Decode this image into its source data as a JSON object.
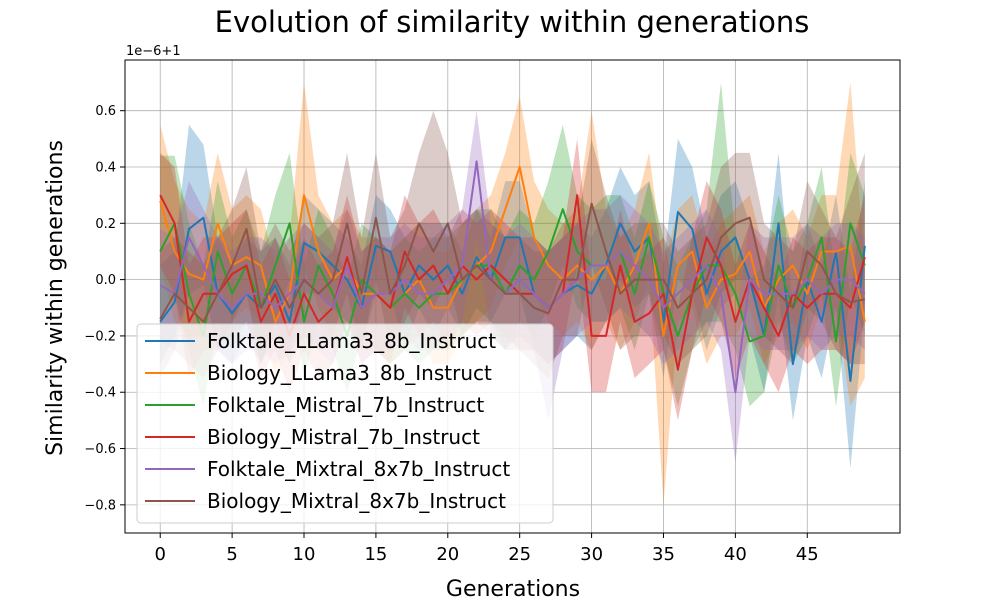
{
  "chart_data": {
    "type": "line",
    "title": "Evolution of similarity within generations",
    "xlabel": "Generations",
    "ylabel": "Similarity within generations",
    "offset_label": "1e−6+1",
    "xlim": [
      -2.45,
      51.45
    ],
    "ylim": [
      -0.9,
      0.78
    ],
    "x_ticks": [
      0,
      5,
      10,
      15,
      20,
      25,
      30,
      35,
      40,
      45
    ],
    "y_ticks": [
      -0.8,
      -0.6,
      -0.4,
      -0.2,
      0.0,
      0.2,
      0.4,
      0.6
    ],
    "y_tick_labels": [
      "−0.8",
      "−0.6",
      "−0.4",
      "−0.2",
      "0.0",
      "0.2",
      "0.4",
      "0.6"
    ],
    "grid": true,
    "legend_position": "lower-left",
    "x": [
      0,
      1,
      2,
      3,
      4,
      5,
      6,
      7,
      8,
      9,
      10,
      11,
      12,
      13,
      14,
      15,
      16,
      17,
      18,
      19,
      20,
      21,
      22,
      23,
      24,
      25,
      26,
      27,
      28,
      29,
      30,
      31,
      32,
      33,
      34,
      35,
      36,
      37,
      38,
      39,
      40,
      41,
      42,
      43,
      44,
      45,
      46,
      47,
      48,
      49
    ],
    "series": [
      {
        "name": "Folktale_LLama3_8b_Instruct",
        "color": "#1f77b4",
        "values": [
          -0.15,
          -0.08,
          0.18,
          0.22,
          -0.05,
          -0.12,
          -0.05,
          -0.1,
          -0.02,
          -0.15,
          0.13,
          0.1,
          0.05,
          0.0,
          -0.1,
          0.12,
          0.1,
          -0.05,
          0.05,
          0.0,
          0.05,
          -0.05,
          0.08,
          0.0,
          0.15,
          0.15,
          -0.05,
          -0.1,
          -0.05,
          -0.02,
          -0.05,
          0.05,
          0.2,
          0.1,
          0.15,
          -0.15,
          0.24,
          0.18,
          -0.05,
          0.1,
          0.15,
          0.0,
          -0.2,
          0.2,
          -0.3,
          0.0,
          -0.15,
          0.1,
          -0.36,
          0.12
        ],
        "lower": [
          -0.3,
          -0.2,
          -0.05,
          -0.02,
          -0.25,
          -0.3,
          -0.2,
          -0.3,
          -0.15,
          -0.3,
          -0.05,
          -0.05,
          -0.1,
          -0.15,
          -0.25,
          -0.05,
          -0.05,
          -0.25,
          -0.1,
          -0.2,
          -0.1,
          -0.2,
          -0.1,
          -0.15,
          -0.05,
          -0.05,
          -0.25,
          -0.3,
          -0.25,
          -0.2,
          -0.25,
          -0.15,
          0.0,
          -0.1,
          -0.05,
          -0.35,
          0.0,
          -0.05,
          -0.25,
          -0.1,
          -0.05,
          -0.2,
          -0.4,
          -0.05,
          -0.5,
          -0.2,
          -0.35,
          -0.1,
          -0.67,
          -0.1
        ],
        "upper": [
          0.05,
          0.1,
          0.55,
          0.48,
          0.15,
          0.05,
          0.15,
          0.1,
          0.15,
          0.05,
          0.3,
          0.25,
          0.2,
          0.15,
          0.05,
          0.3,
          0.25,
          0.15,
          0.2,
          0.2,
          0.2,
          0.1,
          0.25,
          0.15,
          0.35,
          0.35,
          0.15,
          0.1,
          0.15,
          0.2,
          0.15,
          0.25,
          0.4,
          0.3,
          0.35,
          0.05,
          0.5,
          0.4,
          0.15,
          0.3,
          0.35,
          0.2,
          0.0,
          0.45,
          -0.1,
          0.2,
          0.05,
          0.3,
          -0.05,
          0.35
        ]
      },
      {
        "name": "Biology_LLama3_8b_Instruct",
        "color": "#ff7f0e",
        "values": [
          0.28,
          0.1,
          0.02,
          0.0,
          0.2,
          0.05,
          0.08,
          0.05,
          -0.15,
          -0.05,
          0.3,
          0.1,
          0.0,
          0.05,
          -0.05,
          -0.05,
          -0.1,
          -0.05,
          0.0,
          -0.1,
          -0.1,
          0.0,
          0.05,
          0.1,
          0.25,
          0.4,
          0.15,
          0.05,
          0.0,
          0.05,
          0.0,
          0.05,
          -0.05,
          0.05,
          0.2,
          -0.2,
          0.05,
          0.1,
          -0.1,
          0.0,
          0.02,
          0.1,
          -0.1,
          0.0,
          0.05,
          -0.05,
          0.1,
          0.1,
          0.12,
          -0.15
        ],
        "lower": [
          0.05,
          -0.15,
          -0.2,
          -0.2,
          0.0,
          -0.15,
          -0.1,
          -0.15,
          -0.35,
          -0.25,
          0.05,
          -0.1,
          -0.2,
          -0.15,
          -0.25,
          -0.25,
          -0.3,
          -0.25,
          -0.2,
          -0.3,
          -0.3,
          -0.2,
          -0.15,
          -0.1,
          0.05,
          0.15,
          -0.05,
          -0.15,
          -0.2,
          -0.15,
          -0.25,
          -0.15,
          -0.25,
          -0.15,
          0.0,
          -0.8,
          -0.15,
          -0.1,
          -0.3,
          -0.2,
          -0.2,
          -0.1,
          -0.3,
          -0.2,
          -0.15,
          -0.25,
          -0.1,
          -0.1,
          -0.45,
          -0.35
        ],
        "upper": [
          0.55,
          0.35,
          0.25,
          0.2,
          0.45,
          0.25,
          0.3,
          0.25,
          0.05,
          0.15,
          0.7,
          0.3,
          0.2,
          0.25,
          0.15,
          0.15,
          0.1,
          0.15,
          0.2,
          0.1,
          0.1,
          0.2,
          0.25,
          0.3,
          0.45,
          0.65,
          0.35,
          0.25,
          0.2,
          0.25,
          0.6,
          0.25,
          0.15,
          0.25,
          0.45,
          0.05,
          0.25,
          0.3,
          0.1,
          0.2,
          0.25,
          0.3,
          0.1,
          0.2,
          0.25,
          0.15,
          0.3,
          0.3,
          0.7,
          0.05
        ]
      },
      {
        "name": "Folktale_Mistral_7b_Instruct",
        "color": "#2ca02c",
        "values": [
          0.1,
          0.2,
          -0.05,
          -0.2,
          0.1,
          -0.05,
          0.05,
          -0.1,
          0.05,
          0.2,
          -0.15,
          0.05,
          -0.05,
          -0.2,
          0.0,
          -0.05,
          -0.1,
          -0.05,
          -0.1,
          -0.05,
          -0.05,
          0.0,
          0.05,
          0.05,
          -0.05,
          0.05,
          0.0,
          0.1,
          0.25,
          0.1,
          0.05,
          0.05,
          0.1,
          -0.05,
          0.15,
          -0.05,
          -0.2,
          -0.05,
          0.05,
          0.05,
          -0.05,
          -0.22,
          -0.2,
          0.05,
          -0.1,
          0.0,
          0.15,
          -0.22,
          0.2,
          0.05
        ],
        "lower": [
          -0.15,
          -0.05,
          -0.25,
          -0.45,
          -0.15,
          -0.25,
          -0.15,
          -0.3,
          -0.15,
          0.0,
          -0.35,
          -0.15,
          -0.25,
          -0.4,
          -0.2,
          -0.25,
          -0.3,
          -0.25,
          -0.3,
          -0.25,
          -0.25,
          -0.2,
          -0.15,
          -0.15,
          -0.25,
          -0.15,
          -0.2,
          -0.1,
          0.05,
          -0.1,
          -0.15,
          -0.15,
          -0.1,
          -0.25,
          -0.05,
          -0.25,
          -0.45,
          -0.25,
          -0.15,
          -0.15,
          -0.25,
          -0.45,
          -0.4,
          -0.15,
          -0.3,
          -0.2,
          -0.05,
          -0.45,
          -0.05,
          -0.2
        ],
        "upper": [
          0.44,
          0.44,
          0.2,
          0.05,
          0.35,
          0.15,
          0.25,
          0.1,
          0.3,
          0.45,
          0.05,
          0.25,
          0.15,
          0.0,
          0.2,
          0.15,
          0.1,
          0.15,
          0.1,
          0.15,
          0.15,
          0.2,
          0.25,
          0.25,
          0.15,
          0.25,
          0.2,
          0.35,
          0.55,
          0.3,
          0.25,
          0.3,
          0.3,
          0.15,
          0.35,
          0.15,
          0.05,
          0.15,
          0.25,
          0.7,
          0.15,
          0.0,
          0.05,
          0.3,
          0.1,
          0.2,
          0.4,
          0.0,
          0.45,
          0.3
        ]
      },
      {
        "name": "Biology_Mistral_7b_Instruct",
        "color": "#d62728",
        "values": [
          0.3,
          0.2,
          -0.15,
          -0.05,
          -0.05,
          0.02,
          0.05,
          -0.15,
          -0.05,
          -0.2,
          -0.05,
          -0.15,
          -0.1,
          0.08,
          -0.1,
          -0.05,
          -0.1,
          0.1,
          0.0,
          0.05,
          -0.05,
          0.05,
          0.0,
          0.05,
          0.0,
          -0.05,
          -0.05,
          -0.1,
          -0.05,
          0.3,
          -0.2,
          -0.2,
          0.05,
          -0.15,
          -0.12,
          -0.05,
          -0.32,
          -0.05,
          0.15,
          0.05,
          -0.15,
          0.0,
          -0.1,
          -0.2,
          -0.05,
          -0.1,
          -0.05,
          -0.05,
          -0.1,
          0.08
        ],
        "lower": [
          0.05,
          -0.05,
          -0.35,
          -0.25,
          -0.25,
          -0.2,
          -0.15,
          -0.35,
          -0.25,
          -0.4,
          -0.25,
          -0.35,
          -0.3,
          -0.15,
          -0.3,
          -0.25,
          -0.3,
          -0.1,
          -0.2,
          -0.15,
          -0.25,
          -0.15,
          -0.2,
          -0.15,
          -0.2,
          -0.25,
          -0.25,
          -0.3,
          -0.25,
          0.05,
          -0.4,
          -0.4,
          -0.15,
          -0.35,
          -0.3,
          -0.25,
          -0.5,
          -0.25,
          -0.05,
          -0.15,
          -0.35,
          -0.2,
          -0.3,
          -0.4,
          -0.25,
          -0.3,
          -0.25,
          -0.25,
          -0.3,
          -0.15
        ],
        "upper": [
          0.45,
          0.4,
          0.05,
          0.15,
          0.15,
          0.2,
          0.25,
          0.05,
          0.15,
          0.0,
          0.15,
          0.05,
          0.1,
          0.3,
          0.1,
          0.15,
          0.1,
          0.3,
          0.2,
          0.25,
          0.15,
          0.25,
          0.2,
          0.25,
          0.2,
          0.15,
          0.15,
          0.1,
          0.15,
          0.5,
          0.0,
          0.0,
          0.25,
          0.05,
          0.1,
          0.15,
          -0.1,
          0.15,
          0.35,
          0.25,
          0.05,
          0.2,
          0.1,
          0.0,
          0.15,
          0.1,
          0.15,
          0.15,
          0.1,
          0.3
        ]
      },
      {
        "name": "Folktale_Mixtral_8x7b_Instruct",
        "color": "#9467bd",
        "values": [
          -0.02,
          -0.05,
          0.15,
          0.05,
          -0.05,
          -0.1,
          -0.05,
          -0.05,
          -0.1,
          -0.05,
          0.0,
          -0.05,
          -0.1,
          0.05,
          -0.1,
          -0.05,
          -0.05,
          0.0,
          -0.05,
          -0.05,
          0.0,
          0.05,
          0.42,
          0.0,
          -0.05,
          0.0,
          -0.05,
          -0.1,
          -0.05,
          0.0,
          0.05,
          0.05,
          0.1,
          0.05,
          0.0,
          -0.1,
          -0.05,
          0.0,
          0.05,
          -0.05,
          -0.4,
          0.0,
          -0.05,
          -0.05,
          -0.05,
          0.0,
          -0.05,
          0.0,
          0.0,
          -0.05
        ],
        "lower": [
          -0.22,
          -0.25,
          -0.05,
          -0.15,
          -0.25,
          -0.3,
          -0.25,
          -0.25,
          -0.3,
          -0.25,
          -0.2,
          -0.25,
          -0.3,
          -0.15,
          -0.3,
          -0.25,
          -0.25,
          -0.2,
          -0.25,
          -0.25,
          -0.2,
          -0.15,
          0.15,
          -0.2,
          -0.25,
          -0.2,
          -0.25,
          -0.5,
          -0.25,
          -0.2,
          -0.15,
          -0.15,
          -0.1,
          -0.15,
          -0.2,
          -0.3,
          -0.25,
          -0.2,
          -0.15,
          -0.25,
          -0.65,
          -0.2,
          -0.25,
          -0.25,
          -0.25,
          -0.2,
          -0.25,
          -0.2,
          -0.2,
          -0.25
        ],
        "upper": [
          0.18,
          0.15,
          0.35,
          0.25,
          0.15,
          0.1,
          0.15,
          0.15,
          0.1,
          0.15,
          0.2,
          0.15,
          0.1,
          0.25,
          0.1,
          0.15,
          0.15,
          0.2,
          0.15,
          0.15,
          0.2,
          0.25,
          0.6,
          0.2,
          0.15,
          0.2,
          0.15,
          0.1,
          0.15,
          0.2,
          0.25,
          0.25,
          0.3,
          0.25,
          0.2,
          0.1,
          0.15,
          0.2,
          0.25,
          0.15,
          -0.15,
          0.2,
          0.15,
          0.15,
          0.15,
          0.2,
          0.15,
          0.2,
          0.2,
          0.15
        ]
      },
      {
        "name": "Biology_Mixtral_8x7b_Instruct",
        "color": "#8c564b",
        "values": [
          -0.14,
          -0.05,
          -0.1,
          -0.15,
          -0.05,
          0.05,
          0.18,
          -0.1,
          0.0,
          -0.1,
          0.0,
          -0.05,
          0.0,
          0.2,
          -0.05,
          0.22,
          -0.05,
          0.05,
          0.2,
          0.1,
          0.2,
          0.0,
          0.05,
          0.0,
          -0.05,
          -0.05,
          -0.1,
          -0.12,
          0.0,
          0.0,
          0.27,
          0.1,
          -0.05,
          0.0,
          0.0,
          0.0,
          -0.1,
          -0.05,
          0.0,
          0.15,
          0.2,
          0.22,
          0.0,
          -0.05,
          -0.1,
          0.1,
          0.05,
          -0.05,
          -0.08,
          -0.07
        ],
        "lower": [
          -0.35,
          -0.25,
          -0.3,
          -0.35,
          -0.25,
          -0.15,
          -0.05,
          -0.3,
          -0.2,
          -0.3,
          -0.2,
          -0.25,
          -0.2,
          -0.05,
          -0.25,
          0.0,
          -0.25,
          -0.15,
          -0.05,
          -0.1,
          0.0,
          -0.2,
          -0.15,
          -0.2,
          -0.25,
          -0.25,
          -0.3,
          -0.35,
          -0.2,
          -0.2,
          0.05,
          -0.1,
          -0.25,
          -0.2,
          -0.2,
          -0.2,
          -0.3,
          -0.25,
          -0.2,
          -0.05,
          0.0,
          0.0,
          -0.2,
          -0.25,
          -0.3,
          -0.1,
          -0.15,
          -0.25,
          -0.3,
          -0.3
        ],
        "upper": [
          0.1,
          0.15,
          0.1,
          0.05,
          0.15,
          0.25,
          0.4,
          0.1,
          0.2,
          0.1,
          0.2,
          0.15,
          0.2,
          0.45,
          0.15,
          0.45,
          0.15,
          0.25,
          0.45,
          0.6,
          0.45,
          0.2,
          0.25,
          0.2,
          0.15,
          0.15,
          0.1,
          0.1,
          0.2,
          0.2,
          0.5,
          0.3,
          0.15,
          0.2,
          0.2,
          0.2,
          0.1,
          0.15,
          0.2,
          0.4,
          0.45,
          0.45,
          0.2,
          0.15,
          0.1,
          0.35,
          0.25,
          0.15,
          0.3,
          0.45
        ]
      }
    ]
  }
}
